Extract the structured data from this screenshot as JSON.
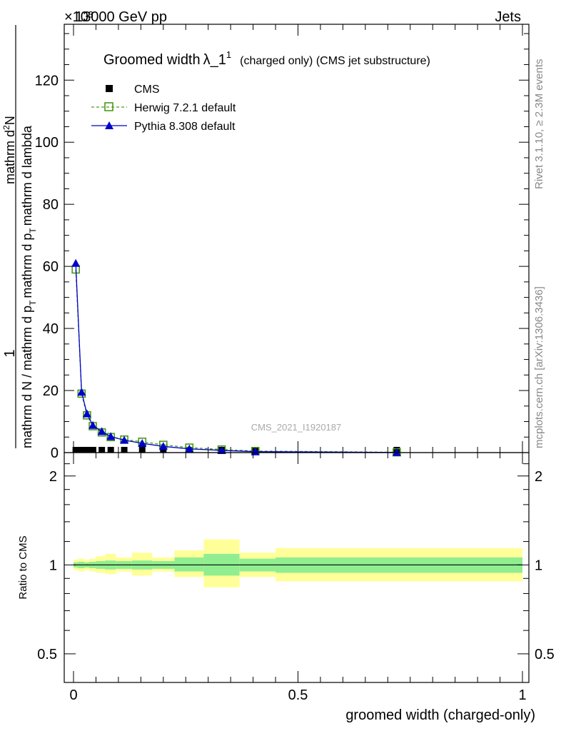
{
  "header": {
    "energy_label": "13000 GeV pp",
    "process_label": "Jets",
    "exponent_label": "×10³"
  },
  "side_labels": {
    "rivet": "Rivet 3.1.10, ≥ 2.3M events",
    "mcplots": "mcplots.cern.ch [arXiv:1306.3436]"
  },
  "chart_data": [
    {
      "type": "line",
      "title": "Groomed width λ_1¹ (charged only) (CMS jet substructure)",
      "title_parts": {
        "main": "Groomed width",
        "lambda": "λ_1",
        "sup": "1",
        "rest": "(charged only) (CMS jet substructure)"
      },
      "analysis_id": "CMS_2021_I1920187",
      "ylabel": "1 / mathrm d N / mathrm d p_T mathrm d p_T mathrm d lambda mathrm dN",
      "ylabel_parts": {
        "numerator": "1",
        "denominator": "mathrm d N / mathrm d p",
        "denominator_sub": "T",
        "second_num": "mathrm d",
        "second_num_sup": "2",
        "second_num_rest": "N",
        "second_den": "mathrm d p",
        "second_den_sub": "T",
        "second_den_rest": "mathrm d lambda"
      },
      "xlim": [
        0,
        1
      ],
      "ylim": [
        0,
        138
      ],
      "y_scale_factor": 1000,
      "y_ticks": [
        0,
        20,
        40,
        60,
        80,
        100,
        120
      ],
      "legend_position": "top-left",
      "x": [
        0.005,
        0.018,
        0.03,
        0.043,
        0.063,
        0.083,
        0.113,
        0.153,
        0.2,
        0.258,
        0.33,
        0.405,
        0.72
      ],
      "series": [
        {
          "name": "CMS",
          "color": "#000000",
          "marker": "square",
          "values": [
            0.4,
            0.4,
            0.4,
            0.4,
            0.4,
            0.4,
            0.4,
            0.4,
            0.4,
            0.3,
            0.2,
            0.1,
            0.05
          ]
        },
        {
          "name": "Herwig 7.2.1 default",
          "color": "#4a9a17",
          "marker": "open-square",
          "dashed": true,
          "values": [
            59.0,
            19.0,
            12.0,
            8.5,
            6.5,
            5.0,
            4.2,
            3.5,
            2.5,
            1.6,
            1.0,
            0.5,
            0.1
          ]
        },
        {
          "name": "Pythia 8.308 default",
          "color": "#0000cc",
          "marker": "triangle",
          "values": [
            61.0,
            19.5,
            12.5,
            8.8,
            6.8,
            5.2,
            4.0,
            3.0,
            2.0,
            1.2,
            0.7,
            0.3,
            0.05
          ]
        }
      ]
    },
    {
      "type": "area",
      "ylabel": "Ratio to CMS",
      "xlabel": "groomed width (charged-only)",
      "xlim": [
        0,
        1
      ],
      "ylim": [
        0.4,
        2.4
      ],
      "y_scale": "log",
      "y_ticks": [
        0.5,
        1,
        2
      ],
      "x_ticks": [
        0,
        0.5,
        1
      ],
      "reference_value": 1,
      "bin_edges": [
        0,
        0.01,
        0.025,
        0.035,
        0.05,
        0.07,
        0.095,
        0.13,
        0.175,
        0.225,
        0.29,
        0.37,
        0.45,
        1.0
      ],
      "stat_band": {
        "color": "#90ee90",
        "low": [
          0.98,
          0.975,
          0.98,
          0.975,
          0.97,
          0.965,
          0.97,
          0.965,
          0.97,
          0.95,
          0.92,
          0.95,
          0.94
        ],
        "high": [
          1.02,
          1.025,
          1.02,
          1.025,
          1.03,
          1.035,
          1.03,
          1.035,
          1.03,
          1.06,
          1.09,
          1.05,
          1.06
        ]
      },
      "total_band": {
        "color": "#ffff99",
        "low": [
          0.96,
          0.95,
          0.96,
          0.95,
          0.94,
          0.93,
          0.95,
          0.92,
          0.95,
          0.91,
          0.84,
          0.91,
          0.88
        ]
      },
      "total_band_high": [
        1.04,
        1.05,
        1.04,
        1.05,
        1.07,
        1.09,
        1.06,
        1.1,
        1.06,
        1.12,
        1.22,
        1.1,
        1.14
      ]
    }
  ]
}
